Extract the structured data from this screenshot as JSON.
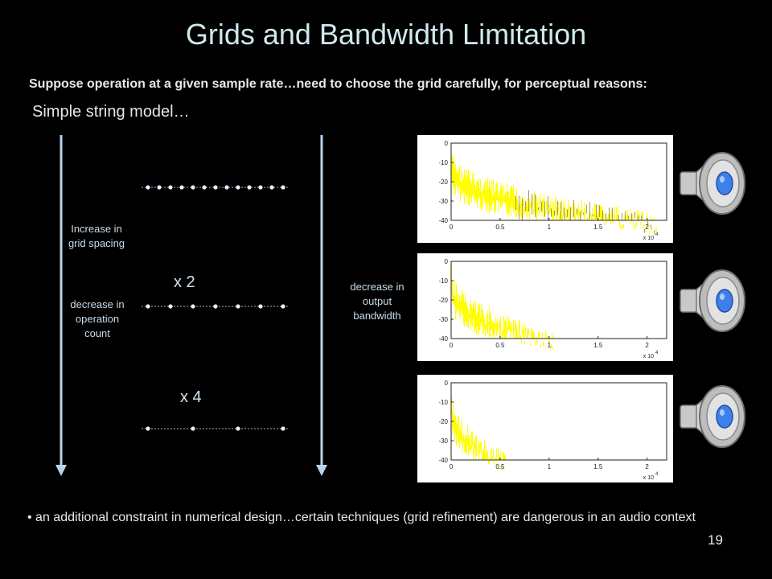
{
  "title": "Grids and Bandwidth Limitation",
  "subtitle": "Suppose operation at a given sample rate…need to choose the grid carefully, for perceptual reasons:",
  "model_label": "Simple string model…",
  "left_labels": {
    "increase": "Increase in grid spacing",
    "decrease": "decrease in operation count"
  },
  "right_label": "decrease in output bandwidth",
  "multipliers": [
    "x 2",
    "x 4"
  ],
  "bullet": "an additional constraint in numerical design…certain techniques (grid refinement) are dangerous in an audio context",
  "page_number": "19",
  "colors": {
    "title": "#cfe9ee",
    "arrow": "#b9d3ea",
    "spectrum": "#ffff00",
    "speaker_cone": "#3f7fe8"
  },
  "icons": [
    "speaker-icon",
    "speaker-icon",
    "speaker-icon"
  ],
  "chart_data": [
    {
      "type": "area",
      "x_tick_labels": [
        "0",
        "0.5",
        "1",
        "1.5",
        "2"
      ],
      "y_tick_labels": [
        "0",
        "-10",
        "-20",
        "-30",
        "-40"
      ],
      "x_exponent_label": "x 10",
      "x_exponent_power": "4",
      "xlim": [
        0,
        2.2
      ],
      "ylim": [
        -40,
        0
      ],
      "bandwidth": 2.1
    },
    {
      "type": "area",
      "x_tick_labels": [
        "0",
        "0.5",
        "1",
        "1.5",
        "2"
      ],
      "y_tick_labels": [
        "0",
        "-10",
        "-20",
        "-30",
        "-40"
      ],
      "x_exponent_label": "x 10",
      "x_exponent_power": "4",
      "xlim": [
        0,
        2.2
      ],
      "ylim": [
        -40,
        0
      ],
      "bandwidth": 1.05
    },
    {
      "type": "area",
      "x_tick_labels": [
        "0",
        "0.5",
        "1",
        "1.5",
        "2"
      ],
      "y_tick_labels": [
        "0",
        "-10",
        "-20",
        "-30",
        "-40"
      ],
      "x_exponent_label": "x 10",
      "x_exponent_power": "4",
      "xlim": [
        0,
        2.2
      ],
      "ylim": [
        -40,
        0
      ],
      "bandwidth": 0.55
    }
  ]
}
